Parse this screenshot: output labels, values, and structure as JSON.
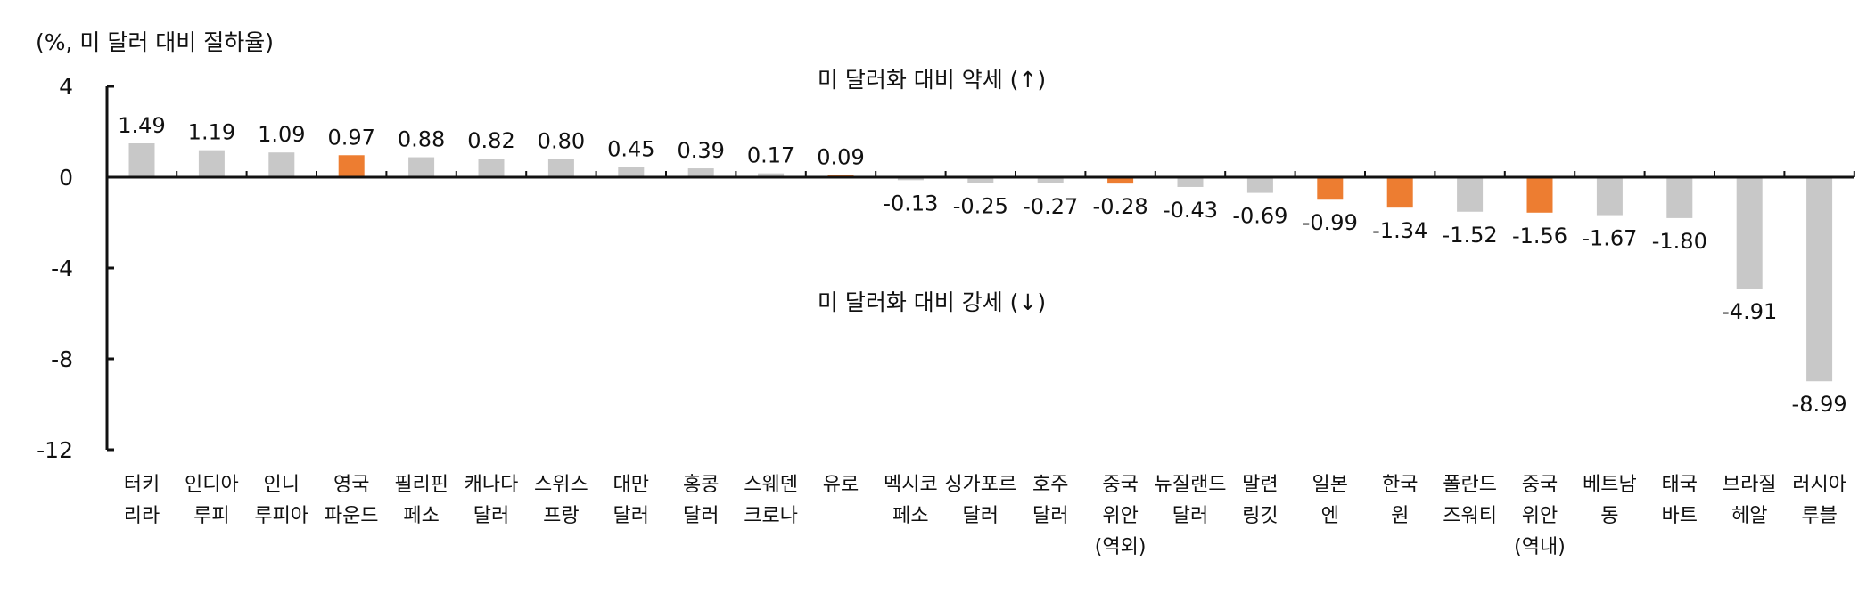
{
  "chart_data": {
    "type": "bar",
    "unit_label": "(%, 미 달러 대비 절하율)",
    "annotations": {
      "upper": "미 달러화 대비 약세 (↑)",
      "lower": "미 달러화 대비 강세 (↓)"
    },
    "ylim": [
      -12,
      4
    ],
    "yticks": [
      "4",
      "0",
      "-4",
      "-8",
      "-12"
    ],
    "ytick_values": [
      4,
      0,
      -4,
      -8,
      -12
    ],
    "categories": [
      [
        "터키",
        "리라"
      ],
      [
        "인디아",
        "루피"
      ],
      [
        "인니",
        "루피아"
      ],
      [
        "영국",
        "파운드"
      ],
      [
        "필리핀",
        "페소"
      ],
      [
        "캐나다",
        "달러"
      ],
      [
        "스위스",
        "프랑"
      ],
      [
        "대만",
        "달러"
      ],
      [
        "홍콩",
        "달러"
      ],
      [
        "스웨덴",
        "크로나"
      ],
      [
        "유로"
      ],
      [
        "멕시코",
        "페소"
      ],
      [
        "싱가포르",
        "달러"
      ],
      [
        "호주",
        "달러"
      ],
      [
        "중국",
        "위안",
        "(역외)"
      ],
      [
        "뉴질랜드",
        "달러"
      ],
      [
        "말련",
        "링깃"
      ],
      [
        "일본",
        "엔"
      ],
      [
        "한국",
        "원"
      ],
      [
        "폴란드",
        "즈워티"
      ],
      [
        "중국",
        "위안",
        "(역내)"
      ],
      [
        "베트남",
        "동"
      ],
      [
        "태국",
        "바트"
      ],
      [
        "브라질",
        "헤알"
      ],
      [
        "러시아",
        "루블"
      ]
    ],
    "values": [
      1.49,
      1.19,
      1.09,
      0.97,
      0.88,
      0.82,
      0.8,
      0.45,
      0.39,
      0.17,
      0.09,
      -0.13,
      -0.25,
      -0.27,
      -0.28,
      -0.43,
      -0.69,
      -0.99,
      -1.34,
      -1.52,
      -1.56,
      -1.67,
      -1.8,
      -4.91,
      -8.99
    ],
    "value_labels": [
      "1.49",
      "1.19",
      "1.09",
      "0.97",
      "0.88",
      "0.82",
      "0.80",
      "0.45",
      "0.39",
      "0.17",
      "0.09",
      "-0.13",
      "-0.25",
      "-0.27",
      "-0.28",
      "-0.43",
      "-0.69",
      "-0.99",
      "-1.34",
      "-1.52",
      "-1.56",
      "-1.67",
      "-1.80",
      "-4.91",
      "-8.99"
    ],
    "highlight": [
      false,
      false,
      false,
      true,
      false,
      false,
      false,
      false,
      false,
      false,
      true,
      false,
      false,
      false,
      true,
      false,
      false,
      true,
      true,
      false,
      true,
      false,
      false,
      false,
      false
    ],
    "colors": {
      "default": "#c8c8c8",
      "highlight": "#ed7d31",
      "axis": "#111111"
    },
    "grid": false,
    "legend": "none"
  }
}
